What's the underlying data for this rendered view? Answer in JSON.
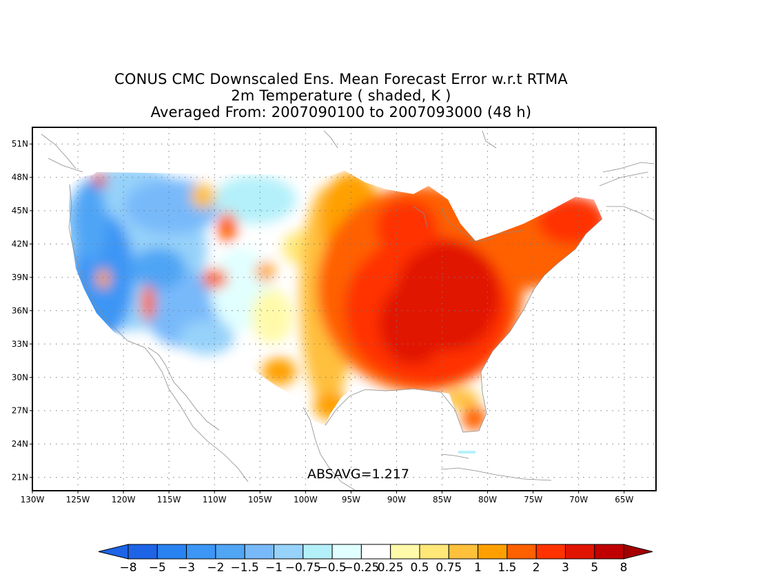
{
  "title": {
    "line1": "CONUS CMC Downscaled Ens. Mean Forecast Error w.r.t RTMA",
    "line2": "2m Temperature ( shaded, K )",
    "line3": "Averaged From: 2007090100 to 2007093000 (48 h)"
  },
  "map": {
    "lon_ticks": [
      "130W",
      "125W",
      "120W",
      "115W",
      "110W",
      "105W",
      "100W",
      "95W",
      "90W",
      "85W",
      "80W",
      "75W",
      "70W",
      "65W"
    ],
    "lat_ticks": [
      "51N",
      "48N",
      "45N",
      "42N",
      "39N",
      "36N",
      "33N",
      "30N",
      "27N",
      "24N",
      "21N"
    ],
    "lon_range": [
      -130,
      -61.5
    ],
    "lat_range": [
      19.8,
      52.5
    ],
    "grid": "dotted",
    "stat_label": "ABSAVG=1.217"
  },
  "colorbar": {
    "labels": [
      "−8",
      "−5",
      "−3",
      "−2",
      "−1.5",
      "−1",
      "−0.75",
      "−0.5",
      "−0.25",
      "0.25",
      "0.5",
      "0.75",
      "1",
      "1.5",
      "2",
      "3",
      "5",
      "8"
    ],
    "colors": [
      "#1e64e6",
      "#1e64e6",
      "#2882f0",
      "#3c96f5",
      "#50a5f5",
      "#78b9fa",
      "#96d2fa",
      "#b4f0fa",
      "#e1ffff",
      "#ffffff",
      "#fffaaa",
      "#ffe878",
      "#ffc03c",
      "#ffa000",
      "#ff6000",
      "#ff3200",
      "#e11400",
      "#c00000",
      "#a50000"
    ]
  }
}
